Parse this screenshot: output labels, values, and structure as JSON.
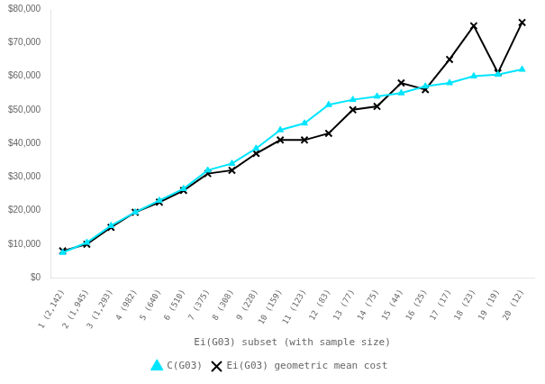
{
  "chart_data": {
    "type": "line",
    "xlabel": "Ei(G03) subset (with sample size)",
    "categories": [
      "1 (2,142)",
      "2 (1,945)",
      "3 (1,293)",
      "4 (982)",
      "5 (640)",
      "6 (510)",
      "7 (375)",
      "8 (308)",
      "9 (228)",
      "10 (159)",
      "11 (123)",
      "12 (83)",
      "13 (77)",
      "14 (75)",
      "15 (44)",
      "16 (25)",
      "17 (17)",
      "18 (23)",
      "19 (19)",
      "20 (12)"
    ],
    "series": [
      {
        "name": "C(G03)",
        "color": "#00e5ff",
        "marker": "triangle",
        "values": [
          7500,
          10500,
          15500,
          19500,
          23000,
          26500,
          32000,
          34000,
          38500,
          44000,
          46000,
          51500,
          53000,
          54000,
          55000,
          57000,
          58000,
          60000,
          60500,
          62000
        ]
      },
      {
        "name": "Ei(G03) geometric mean cost",
        "color": "#000000",
        "marker": "x",
        "values": [
          8000,
          10000,
          15000,
          19500,
          22500,
          26000,
          31000,
          32000,
          37000,
          41000,
          41000,
          43000,
          50000,
          51000,
          58000,
          56000,
          65000,
          75000,
          61000,
          76000
        ]
      }
    ],
    "ylim": [
      0,
      80000
    ],
    "yticks": [
      {
        "value": 0,
        "label": "$0"
      },
      {
        "value": 10000,
        "label": "$10,000"
      },
      {
        "value": 20000,
        "label": "$20,000"
      },
      {
        "value": 30000,
        "label": "$30,000"
      },
      {
        "value": 40000,
        "label": "$40,000"
      },
      {
        "value": 50000,
        "label": "$50,000"
      },
      {
        "value": 60000,
        "label": "$60,000"
      },
      {
        "value": 70000,
        "label": "$70,000"
      },
      {
        "value": 80000,
        "label": "$80,000"
      }
    ],
    "grid": false,
    "legend": "bottom"
  }
}
